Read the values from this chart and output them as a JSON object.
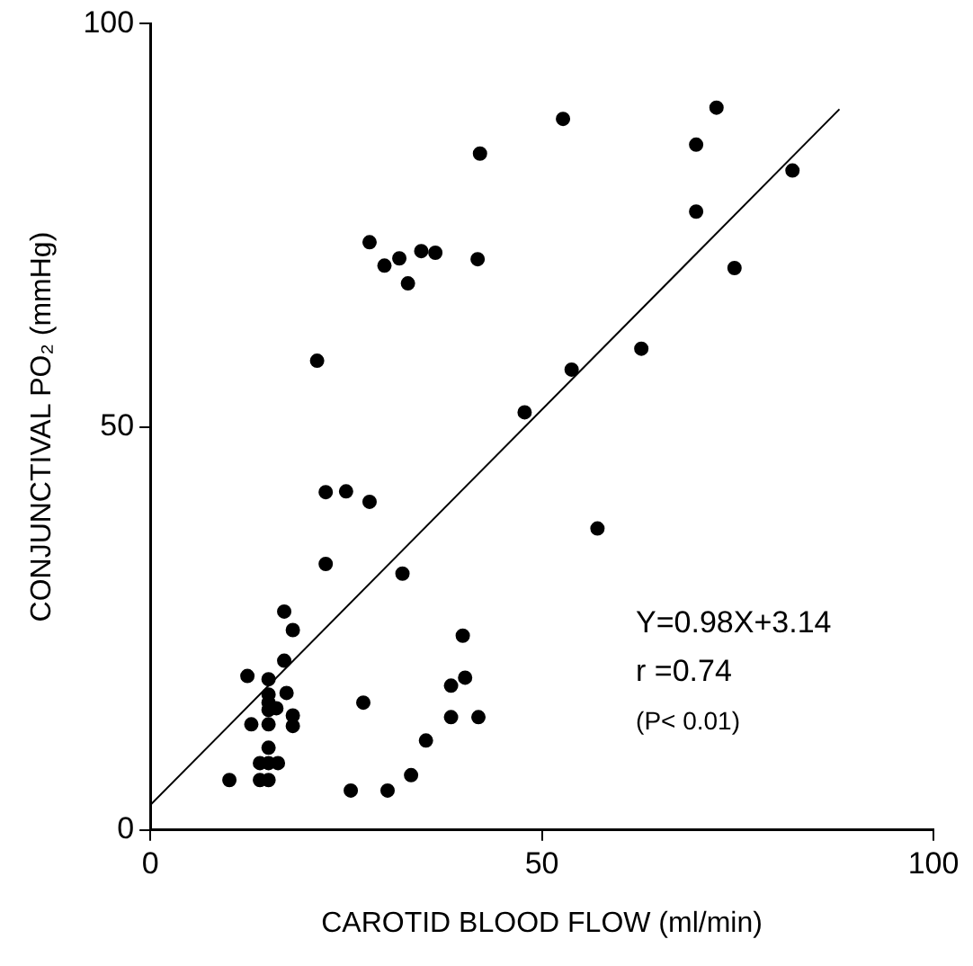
{
  "chart_data": {
    "type": "scatter",
    "xlabel": "CAROTID BLOOD FLOW (ml/min)",
    "ylabel": "CONJUNCTIVAL PO₂ (mmHg)",
    "xlim": [
      0,
      100
    ],
    "xticks": [
      0,
      50,
      100
    ],
    "ylim": [
      0,
      100
    ],
    "yticks": [
      0,
      50,
      100
    ],
    "grid": false,
    "legend": false,
    "marker": "circle",
    "annotations": [
      "Y=0.98X+3.14",
      "r =0.74",
      "(P< 0.01)"
    ],
    "series": [
      {
        "color": "#000000",
        "x": [
          42.1,
          52.7,
          72.3,
          69.7,
          82.0,
          69.7,
          28.0,
          29.9,
          31.8,
          34.6,
          36.4,
          32.9,
          41.8,
          74.6,
          21.3,
          62.7,
          53.8,
          47.8,
          22.4,
          25.0,
          28.0,
          57.1,
          22.4,
          32.2,
          17.1,
          18.2,
          39.9,
          17.1,
          12.4,
          15.1,
          38.4,
          40.2,
          15.1,
          17.4,
          15.1,
          16.1,
          15.1,
          27.2,
          12.9,
          15.1,
          18.2,
          18.2,
          38.4,
          41.9,
          15.1,
          14.0,
          15.1,
          16.3,
          35.2,
          10.1,
          14.0,
          15.1,
          33.3,
          25.6,
          30.3
        ],
        "values": [
          83.9,
          88.2,
          89.6,
          85.0,
          81.8,
          76.7,
          72.9,
          70.0,
          70.9,
          71.8,
          71.6,
          67.8,
          70.8,
          69.7,
          58.2,
          59.7,
          57.1,
          51.8,
          41.9,
          42.0,
          40.7,
          37.4,
          33.0,
          31.8,
          27.1,
          24.8,
          24.1,
          21.0,
          19.1,
          18.7,
          17.9,
          18.9,
          16.8,
          17.0,
          15.8,
          15.1,
          14.9,
          15.8,
          13.1,
          13.1,
          14.2,
          12.9,
          14.0,
          14.0,
          10.2,
          8.3,
          8.3,
          8.3,
          11.1,
          6.2,
          6.2,
          6.2,
          6.8,
          4.9,
          4.9
        ]
      },
      {
        "type": "line",
        "color": "#000000",
        "marker": "none",
        "line_style": "solid",
        "x": [
          0,
          88
        ],
        "values": [
          3.1,
          89.4
        ]
      }
    ]
  }
}
